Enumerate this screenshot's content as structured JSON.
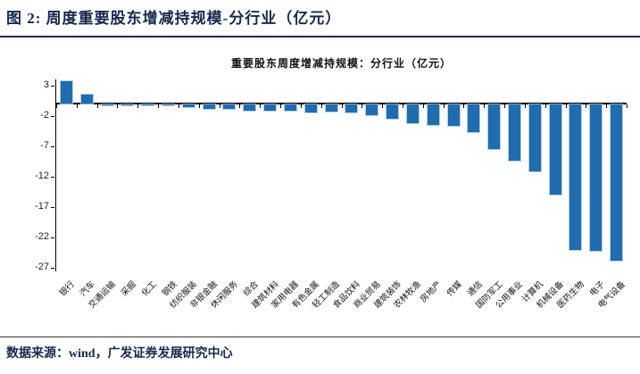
{
  "header": {
    "title": "图 2: 周度重要股东增减持规模-分行业（亿元）"
  },
  "chart_data": {
    "type": "bar",
    "title": "重要股东周度增减持规模：分行业（亿元）",
    "categories": [
      "银行",
      "汽车",
      "交通运输",
      "采掘",
      "化工",
      "钢铁",
      "纺织服装",
      "非银金融",
      "休闲服务",
      "综合",
      "建筑材料",
      "家用电器",
      "有色金属",
      "轻工制造",
      "食品饮料",
      "商业贸易",
      "建筑装饰",
      "农林牧渔",
      "房地产",
      "传媒",
      "通信",
      "国防军工",
      "公用事业",
      "计算机",
      "机械设备",
      "医药生物",
      "电子",
      "电气设备"
    ],
    "values": [
      3.7,
      1.4,
      -0.05,
      -0.1,
      -0.1,
      -0.2,
      -0.5,
      -0.8,
      -0.8,
      -1.0,
      -1.1,
      -1.1,
      -1.3,
      -1.2,
      -1.3,
      -1.8,
      -2.3,
      -3.1,
      -3.4,
      -3.5,
      -4.6,
      -7.3,
      -9.3,
      -11.0,
      -14.9,
      -23.9,
      -24.1,
      -25.8
    ],
    "yticks": [
      3,
      -2,
      -7,
      -12,
      -17,
      -22,
      -27
    ],
    "ylim": [
      4.0,
      -27.6
    ],
    "xlabel": "",
    "ylabel": "",
    "grid": false,
    "legend_position": "none",
    "bar_color": "#1f6cae"
  },
  "footer": {
    "source_text": "数据来源：wind，广发证券发展研究中心"
  },
  "colors": {
    "accent_navy": "#16294d",
    "bar_blue": "#1f6cae",
    "axis_black": "#000000"
  }
}
